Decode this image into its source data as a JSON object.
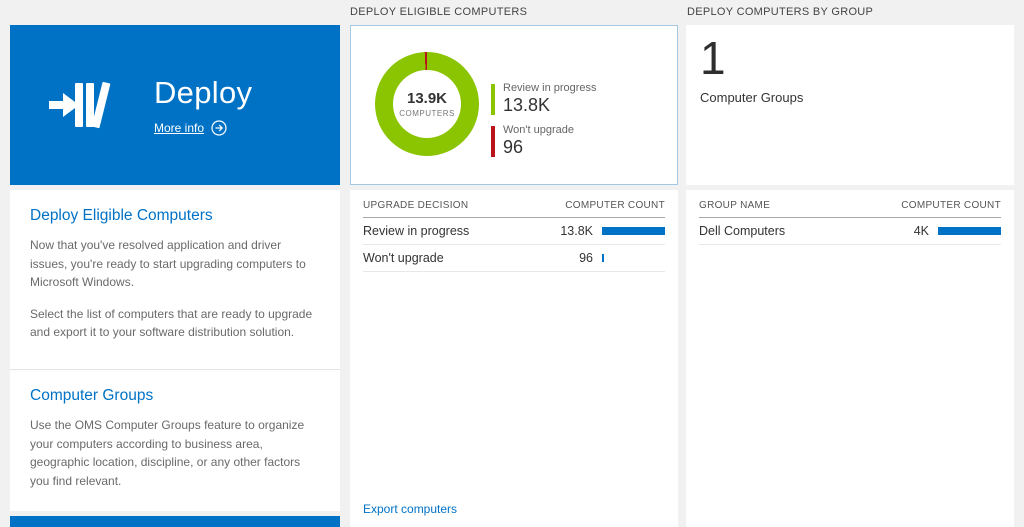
{
  "page": {
    "bg": "#f1f1f1",
    "accent": "#0072c6"
  },
  "headers": {
    "middle": "DEPLOY ELIGIBLE COMPUTERS",
    "right": "DEPLOY COMPUTERS BY GROUP"
  },
  "deploy_tile": {
    "title": "Deploy",
    "more_info_label": "More info"
  },
  "info_panel": {
    "sections": [
      {
        "heading": "Deploy Eligible Computers",
        "paras": [
          "Now that you've resolved application and driver issues, you're ready to start upgrading computers to Microsoft Windows.",
          "Select the list of computers that are ready to upgrade and export it to your software distribution solution."
        ]
      },
      {
        "heading": "Computer Groups",
        "paras": [
          "Use the OMS Computer Groups feature to organize your computers according to business area, geographic location, discipline, or any other factors you find relevant."
        ]
      }
    ]
  },
  "middle": {
    "donut": {
      "center_value": "13.9K",
      "center_label": "COMPUTERS",
      "green_pct": 99.3,
      "legend": [
        {
          "label": "Review in progress",
          "value": "13.8K",
          "color": "#8bc400"
        },
        {
          "label": "Won't upgrade",
          "value": "96",
          "color": "#ba141a"
        }
      ]
    },
    "table": {
      "col1": "UPGRADE DECISION",
      "col2": "COMPUTER COUNT",
      "rows": [
        {
          "label": "Review in progress",
          "value": "13.8K",
          "bar_pct": 100
        },
        {
          "label": "Won't upgrade",
          "value": "96",
          "bar_pct": 3
        }
      ]
    },
    "footer_link": "Export computers"
  },
  "right": {
    "tile": {
      "value": "1",
      "label": "Computer Groups"
    },
    "table": {
      "col1": "GROUP NAME",
      "col2": "COMPUTER COUNT",
      "rows": [
        {
          "label": "Dell Computers",
          "value": "4K",
          "bar_pct": 100
        }
      ]
    }
  },
  "chart_data": {
    "type": "pie",
    "title": "Deploy Eligible Computers",
    "center_value": "13.9K",
    "center_label": "COMPUTERS",
    "legend_position": "right",
    "slices": [
      {
        "label": "Review in progress",
        "value": 13800,
        "display": "13.8K",
        "color": "#8bc400"
      },
      {
        "label": "Won't upgrade",
        "value": 96,
        "display": "96",
        "color": "#ba141a"
      }
    ]
  }
}
